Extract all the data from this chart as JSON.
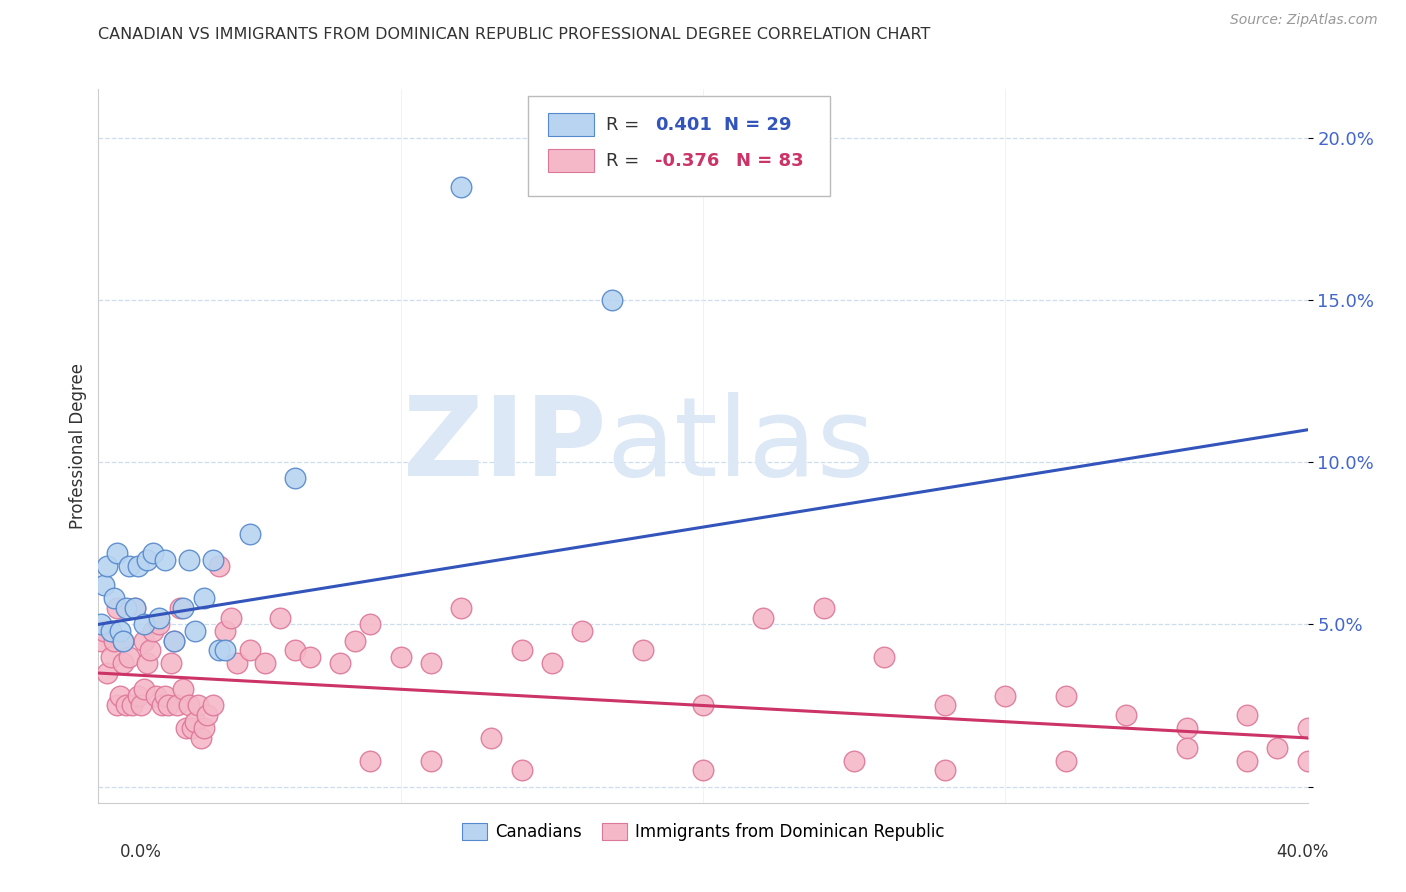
{
  "title": "CANADIAN VS IMMIGRANTS FROM DOMINICAN REPUBLIC PROFESSIONAL DEGREE CORRELATION CHART",
  "source": "Source: ZipAtlas.com",
  "ylabel": "Professional Degree",
  "xlim": [
    0.0,
    0.4
  ],
  "ylim": [
    -0.005,
    0.215
  ],
  "yticks": [
    0.0,
    0.05,
    0.1,
    0.15,
    0.2
  ],
  "ytick_labels": [
    "",
    "5.0%",
    "10.0%",
    "15.0%",
    "20.0%"
  ],
  "canadian_color": "#b8d4f0",
  "canadian_edge": "#5588cc",
  "dominican_color": "#f5b8c8",
  "dominican_edge": "#dd7799",
  "trendline_canadian_color": "#3355bb",
  "trendline_dominican_color": "#cc3366",
  "background_color": "#ffffff",
  "grid_color": "#ccddee",
  "canadian_x": [
    0.001,
    0.002,
    0.003,
    0.004,
    0.005,
    0.006,
    0.007,
    0.008,
    0.009,
    0.01,
    0.012,
    0.013,
    0.015,
    0.016,
    0.018,
    0.02,
    0.022,
    0.025,
    0.028,
    0.03,
    0.032,
    0.035,
    0.038,
    0.04,
    0.042,
    0.05,
    0.065,
    0.12,
    0.17
  ],
  "canadian_y": [
    0.05,
    0.062,
    0.068,
    0.048,
    0.058,
    0.072,
    0.048,
    0.045,
    0.055,
    0.068,
    0.055,
    0.068,
    0.05,
    0.07,
    0.072,
    0.052,
    0.07,
    0.045,
    0.055,
    0.07,
    0.048,
    0.058,
    0.07,
    0.042,
    0.042,
    0.078,
    0.095,
    0.185,
    0.15
  ],
  "dominican_x": [
    0.001,
    0.002,
    0.003,
    0.004,
    0.005,
    0.006,
    0.006,
    0.007,
    0.008,
    0.008,
    0.009,
    0.01,
    0.011,
    0.012,
    0.013,
    0.014,
    0.015,
    0.015,
    0.016,
    0.017,
    0.018,
    0.019,
    0.02,
    0.021,
    0.022,
    0.023,
    0.024,
    0.025,
    0.026,
    0.027,
    0.028,
    0.029,
    0.03,
    0.031,
    0.032,
    0.033,
    0.034,
    0.035,
    0.036,
    0.038,
    0.04,
    0.042,
    0.044,
    0.046,
    0.05,
    0.055,
    0.06,
    0.065,
    0.07,
    0.08,
    0.085,
    0.09,
    0.1,
    0.11,
    0.12,
    0.13,
    0.14,
    0.15,
    0.16,
    0.18,
    0.2,
    0.22,
    0.24,
    0.26,
    0.28,
    0.3,
    0.32,
    0.34,
    0.36,
    0.38,
    0.4,
    0.09,
    0.11,
    0.14,
    0.2,
    0.25,
    0.28,
    0.32,
    0.36,
    0.38,
    0.39,
    0.4
  ],
  "dominican_y": [
    0.045,
    0.048,
    0.035,
    0.04,
    0.045,
    0.025,
    0.055,
    0.028,
    0.038,
    0.045,
    0.025,
    0.04,
    0.025,
    0.055,
    0.028,
    0.025,
    0.03,
    0.045,
    0.038,
    0.042,
    0.048,
    0.028,
    0.05,
    0.025,
    0.028,
    0.025,
    0.038,
    0.045,
    0.025,
    0.055,
    0.03,
    0.018,
    0.025,
    0.018,
    0.02,
    0.025,
    0.015,
    0.018,
    0.022,
    0.025,
    0.068,
    0.048,
    0.052,
    0.038,
    0.042,
    0.038,
    0.052,
    0.042,
    0.04,
    0.038,
    0.045,
    0.05,
    0.04,
    0.038,
    0.055,
    0.015,
    0.042,
    0.038,
    0.048,
    0.042,
    0.025,
    0.052,
    0.055,
    0.04,
    0.025,
    0.028,
    0.028,
    0.022,
    0.018,
    0.022,
    0.018,
    0.008,
    0.008,
    0.005,
    0.005,
    0.008,
    0.005,
    0.008,
    0.012,
    0.008,
    0.012,
    0.008
  ]
}
